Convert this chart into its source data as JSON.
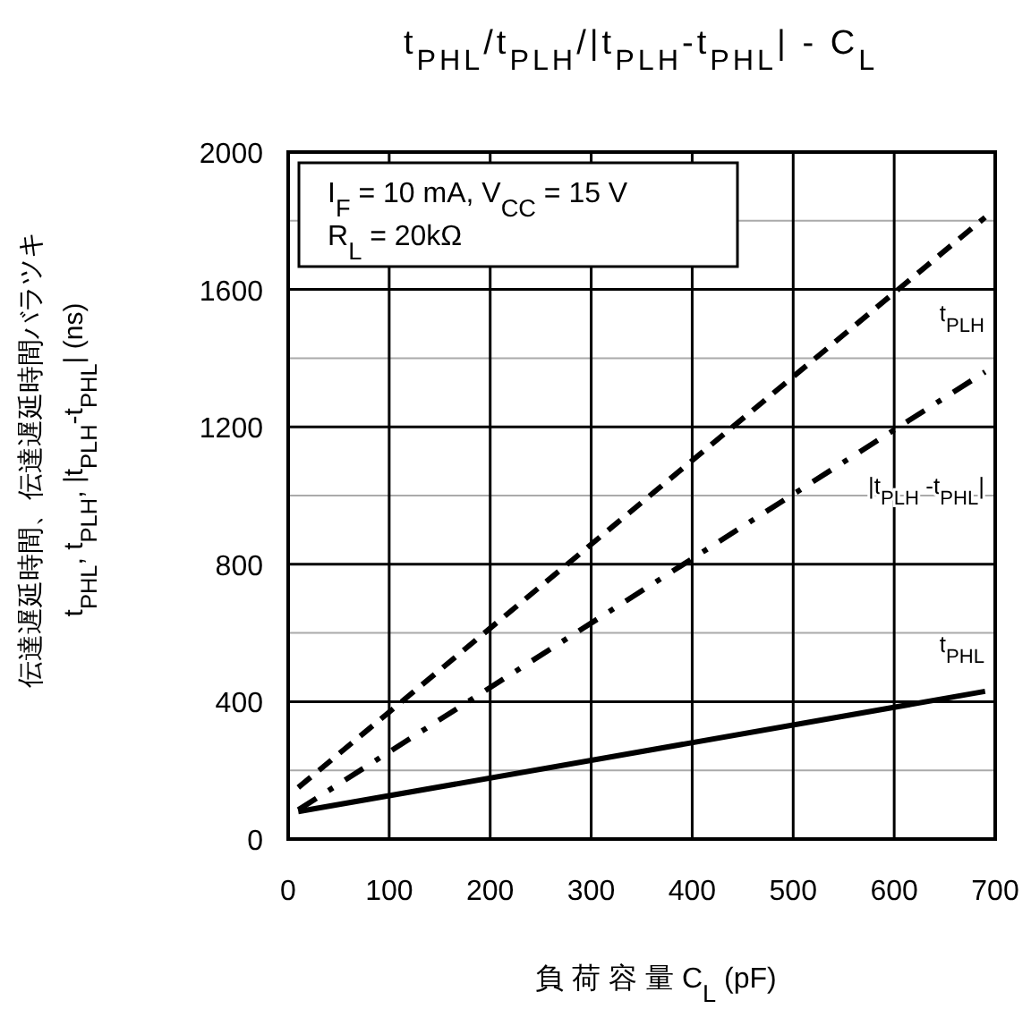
{
  "chart_data": {
    "type": "line",
    "title": "t$_{PHL}$/t$_{PLH}$/|t$_{PLH}$-t$_{PHL}$| - C$_{L}$",
    "xlabel": "負 荷 容 量  C$_{L}$ (pF)",
    "ylabel": "伝達遅延時間、伝達遅延時間バラツキ\nt$_{PHL}$, t$_{PLH}$, |t$_{PLH}$-t$_{PHL}$| (ns)",
    "annotations": [
      "I$_{F}$ = 10 mA, V$_{CC}$ = 15 V\nR$_{L}$ = 20kΩ"
    ],
    "x": [
      10,
      690
    ],
    "series": [
      {
        "name": "t$_{PLH}$",
        "color": "#000000",
        "line_style": "dashed",
        "values": [
          150,
          1810
        ]
      },
      {
        "name": "|t$_{PLH}$ -t$_{PHL}$|",
        "color": "#000000",
        "line_style": "dashdot",
        "values": [
          85,
          1360
        ]
      },
      {
        "name": "t$_{PHL}$",
        "color": "#000000",
        "line_style": "solid",
        "values": [
          80,
          430
        ]
      }
    ],
    "xlim": [
      0,
      700
    ],
    "xticks": [
      0,
      100,
      200,
      300,
      400,
      500,
      600,
      700
    ],
    "ylim": [
      0,
      2000
    ],
    "yticks": [
      0,
      {
        "value": 200,
        "label": null
      },
      400,
      {
        "value": 600,
        "label": null
      },
      800,
      {
        "value": 1000,
        "label": null
      },
      1200,
      {
        "value": 1400,
        "label": null
      },
      1600,
      {
        "value": 1800,
        "label": null
      },
      2000
    ],
    "grid": true,
    "legend": false,
    "marker": "none"
  }
}
